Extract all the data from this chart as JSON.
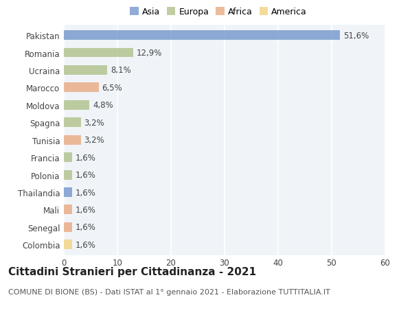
{
  "categories": [
    "Pakistan",
    "Romania",
    "Ucraina",
    "Marocco",
    "Moldova",
    "Spagna",
    "Tunisia",
    "Francia",
    "Polonia",
    "Thailandia",
    "Mali",
    "Senegal",
    "Colombia"
  ],
  "values": [
    51.6,
    12.9,
    8.1,
    6.5,
    4.8,
    3.2,
    3.2,
    1.6,
    1.6,
    1.6,
    1.6,
    1.6,
    1.6
  ],
  "labels": [
    "51,6%",
    "12,9%",
    "8,1%",
    "6,5%",
    "4,8%",
    "3,2%",
    "3,2%",
    "1,6%",
    "1,6%",
    "1,6%",
    "1,6%",
    "1,6%",
    "1,6%"
  ],
  "colors": [
    "#6b8fc9",
    "#abbe82",
    "#abbe82",
    "#e8a47a",
    "#abbe82",
    "#abbe82",
    "#e8a47a",
    "#abbe82",
    "#abbe82",
    "#6b8fc9",
    "#e8a47a",
    "#e8a47a",
    "#f2d07a"
  ],
  "legend_labels": [
    "Asia",
    "Europa",
    "Africa",
    "America"
  ],
  "legend_colors": [
    "#6b8fc9",
    "#abbe82",
    "#e8a47a",
    "#f2d07a"
  ],
  "xlim": [
    0,
    60
  ],
  "xticks": [
    0,
    10,
    20,
    30,
    40,
    50,
    60
  ],
  "title": "Cittadini Stranieri per Cittadinanza - 2021",
  "subtitle": "COMUNE DI BIONE (BS) - Dati ISTAT al 1° gennaio 2021 - Elaborazione TUTTITALIA.IT",
  "plot_bg_color": "#f0f4f8",
  "fig_bg_color": "#ffffff",
  "grid_color": "#ffffff",
  "bar_height": 0.55,
  "label_fontsize": 8.5,
  "tick_fontsize": 8.5,
  "title_fontsize": 11,
  "subtitle_fontsize": 8,
  "legend_fontsize": 9
}
